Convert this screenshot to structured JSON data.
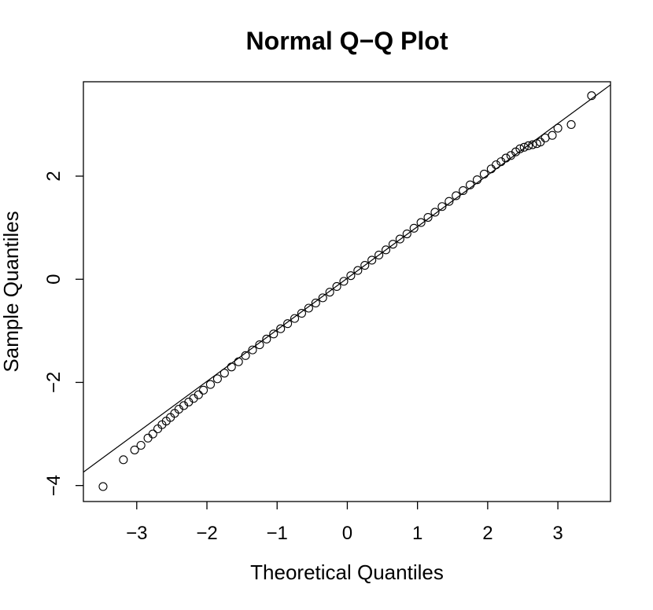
{
  "chart_data": {
    "type": "scatter",
    "title": "Normal Q−Q Plot",
    "x_label": "Theoretical Quantiles",
    "y_label": "Sample Quantiles",
    "x": [
      -3.48,
      -3.19,
      -3.03,
      -2.94,
      -2.84,
      -2.77,
      -2.7,
      -2.64,
      -2.58,
      -2.52,
      -2.46,
      -2.4,
      -2.33,
      -2.26,
      -2.19,
      -2.12,
      -2.05,
      -1.95,
      -1.85,
      -1.75,
      -1.65,
      -1.55,
      -1.45,
      -1.35,
      -1.25,
      -1.15,
      -1.05,
      -0.95,
      -0.85,
      -0.75,
      -0.65,
      -0.55,
      -0.45,
      -0.35,
      -0.25,
      -0.15,
      -0.05,
      0.05,
      0.15,
      0.25,
      0.35,
      0.45,
      0.55,
      0.65,
      0.75,
      0.85,
      0.95,
      1.05,
      1.15,
      1.25,
      1.35,
      1.45,
      1.55,
      1.65,
      1.75,
      1.85,
      1.95,
      2.05,
      2.12,
      2.19,
      2.26,
      2.33,
      2.4,
      2.46,
      2.52,
      2.58,
      2.64,
      2.7,
      2.75,
      2.82,
      2.92,
      3.0,
      3.19,
      3.48
    ],
    "values": [
      -4.02,
      -3.5,
      -3.31,
      -3.22,
      -3.08,
      -3.0,
      -2.9,
      -2.82,
      -2.75,
      -2.68,
      -2.6,
      -2.52,
      -2.45,
      -2.38,
      -2.31,
      -2.24,
      -2.15,
      -2.04,
      -1.93,
      -1.82,
      -1.7,
      -1.6,
      -1.48,
      -1.37,
      -1.27,
      -1.16,
      -1.06,
      -0.96,
      -0.86,
      -0.76,
      -0.66,
      -0.56,
      -0.46,
      -0.36,
      -0.25,
      -0.14,
      -0.04,
      0.07,
      0.17,
      0.27,
      0.37,
      0.47,
      0.57,
      0.68,
      0.78,
      0.88,
      0.99,
      1.1,
      1.2,
      1.3,
      1.41,
      1.51,
      1.62,
      1.72,
      1.83,
      1.93,
      2.04,
      2.14,
      2.22,
      2.28,
      2.35,
      2.4,
      2.47,
      2.53,
      2.56,
      2.59,
      2.61,
      2.63,
      2.66,
      2.74,
      2.79,
      2.93,
      3.0,
      3.56
    ],
    "color": "#000000",
    "reference_line": {
      "slope": 1.0,
      "intercept": 0.02
    },
    "xlim": [
      -3.76,
      3.75
    ],
    "ylim": [
      -4.31,
      3.83
    ],
    "xticks": [
      {
        "value": -3,
        "label": "−3"
      },
      {
        "value": -2,
        "label": "−2"
      },
      {
        "value": -1,
        "label": "−1"
      },
      0,
      1,
      2,
      3
    ],
    "yticks": [
      {
        "value": -4,
        "label": "−4"
      },
      {
        "value": -2,
        "label": "−2"
      },
      0,
      2
    ],
    "grid": false
  }
}
